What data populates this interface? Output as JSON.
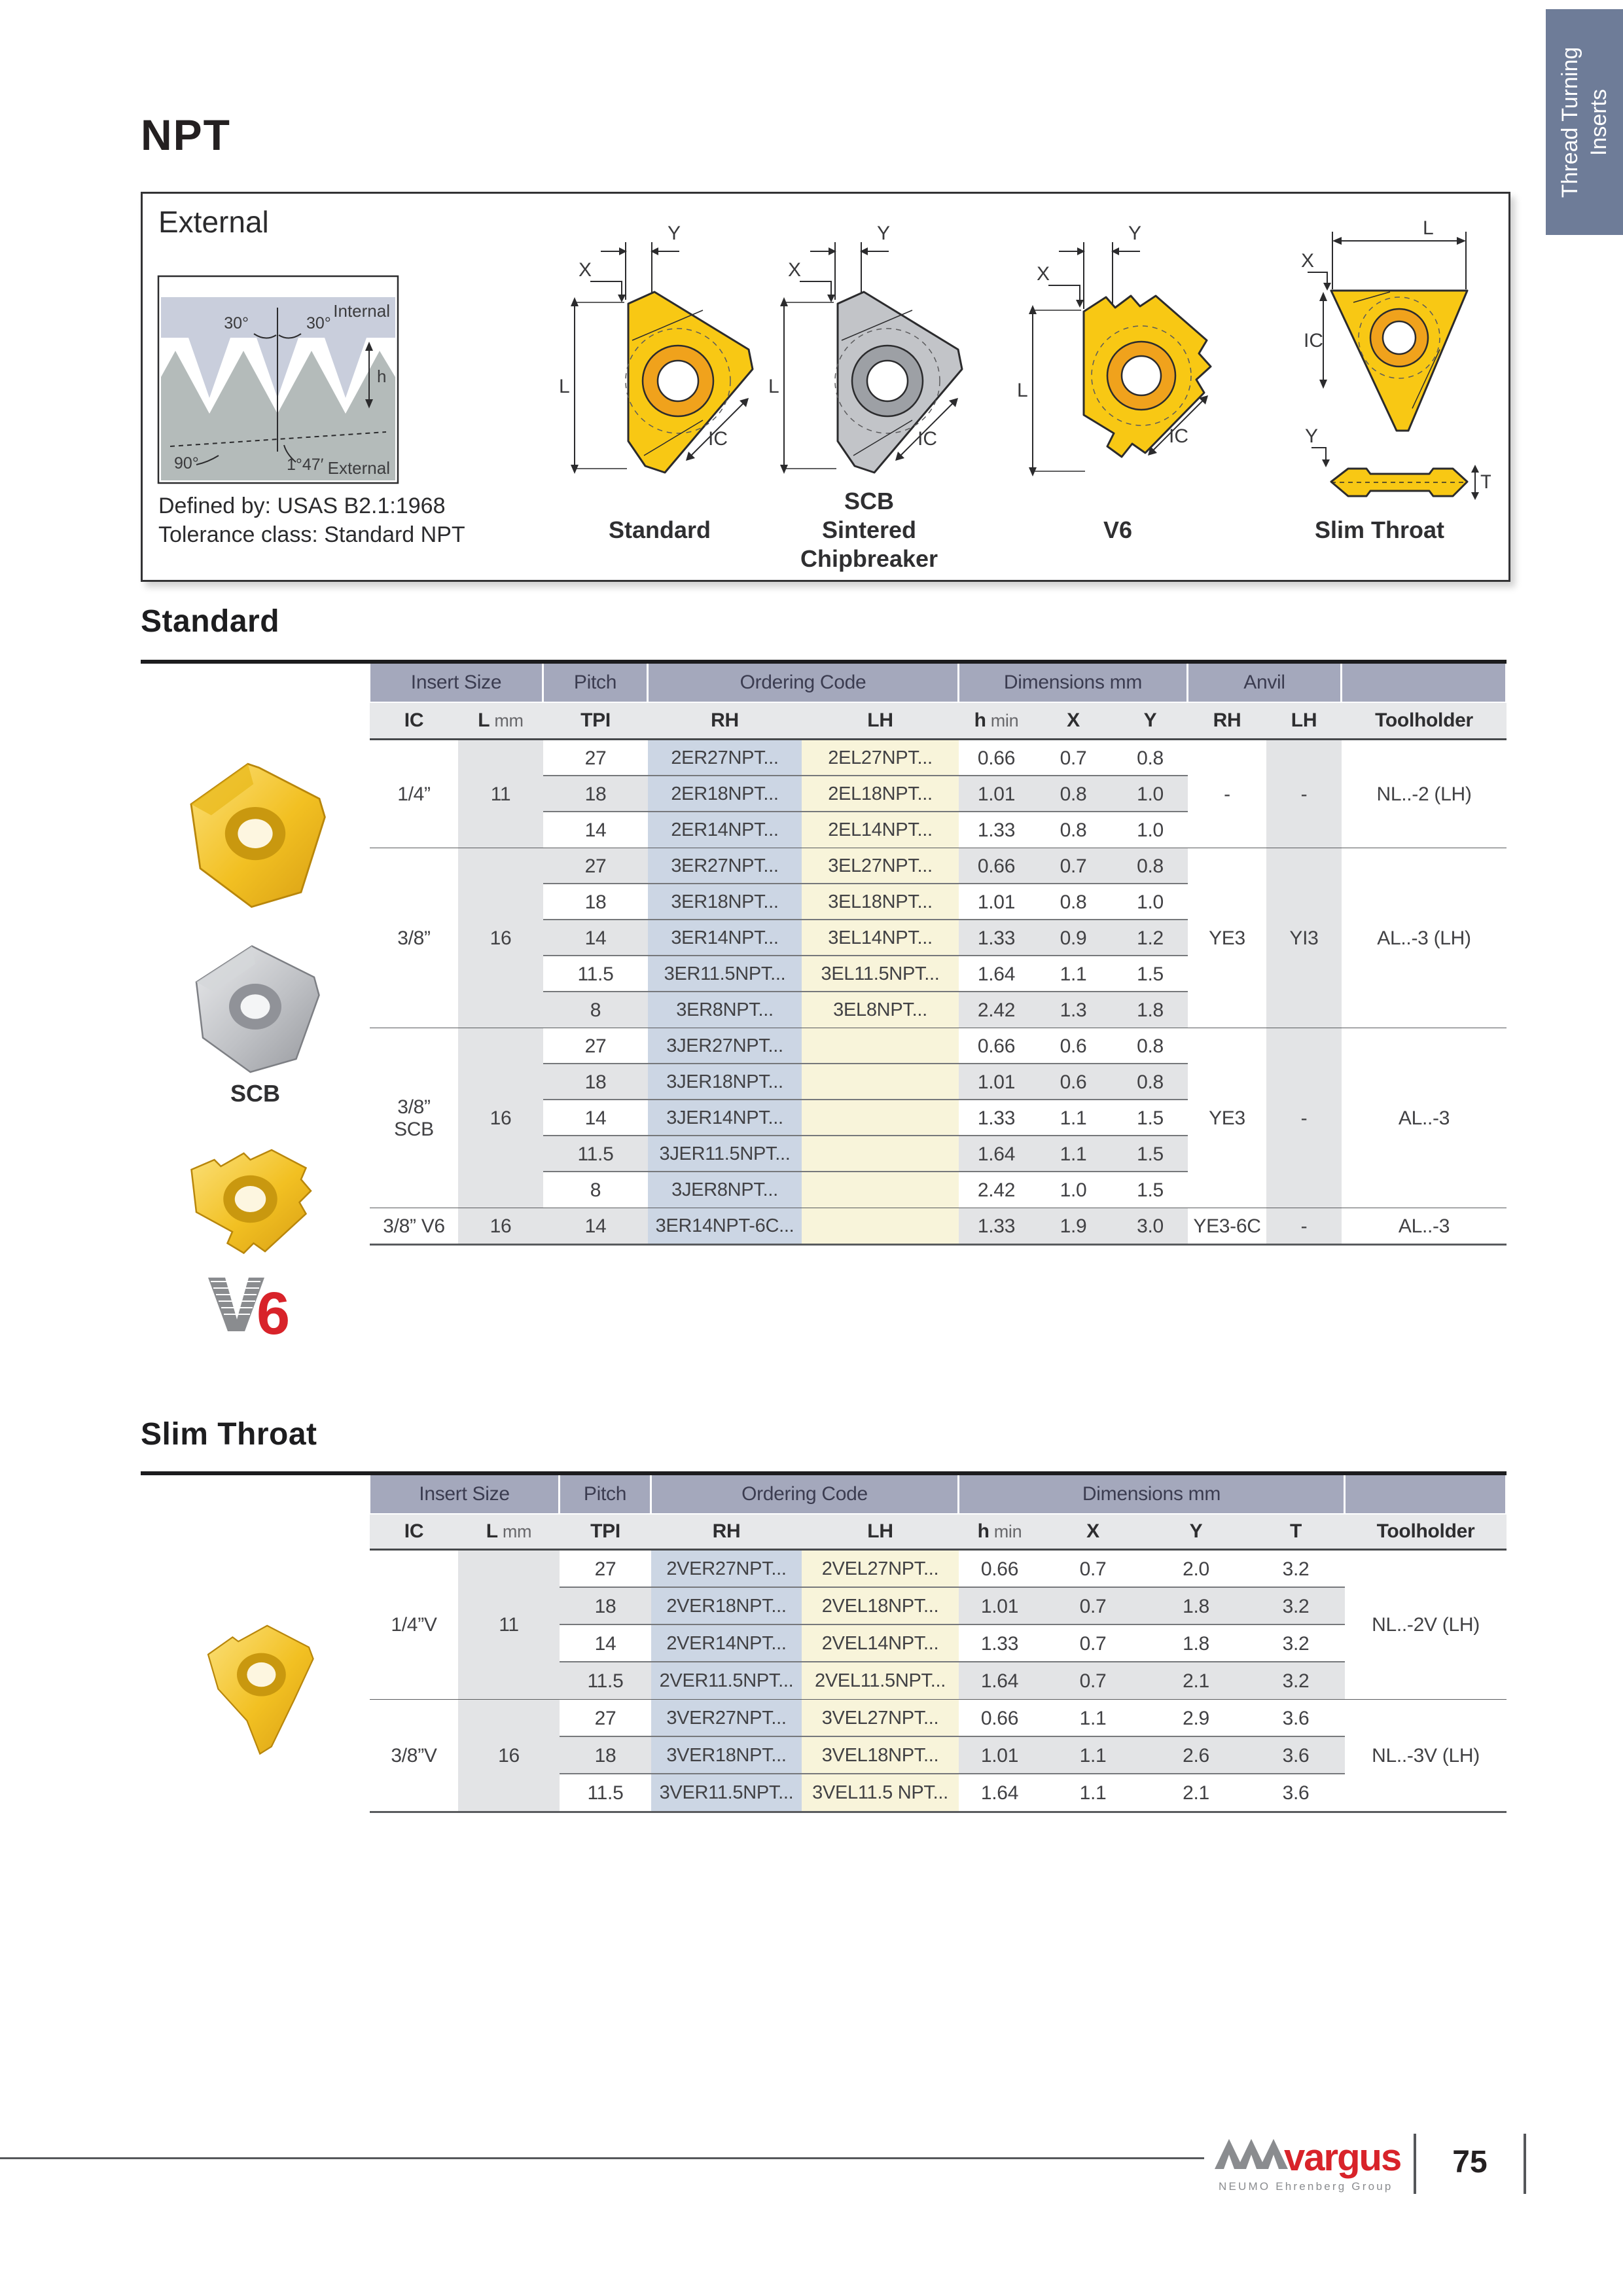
{
  "page": {
    "title": "NPT",
    "side_tab": {
      "line1": "Thread Turning",
      "line2": "Inserts"
    }
  },
  "external_box": {
    "title": "External",
    "defined_by": "Defined by: USAS B2.1:1968",
    "tolerance": "Tolerance class: Standard NPT",
    "profile_labels": {
      "angle_left": "30°",
      "angle_right": "30°",
      "internal": "Internal",
      "height": "h",
      "angle_90": "90°",
      "taper": "1°47′",
      "external": "External"
    },
    "dim_labels": {
      "x": "X",
      "y": "Y",
      "l": "L",
      "ic": "IC",
      "t": "T"
    },
    "variants": [
      {
        "caption": "Standard"
      },
      {
        "caption": "SCB Sintered Chipbreaker",
        "lines": [
          "SCB",
          "Sintered",
          "Chipbreaker"
        ]
      },
      {
        "caption": "V6"
      },
      {
        "caption": "Slim Throat"
      }
    ]
  },
  "standard_table": {
    "heading": "Standard",
    "photo_caption_scb": "SCB",
    "v6_logo": {
      "v": "V",
      "six": "6"
    },
    "col_groups": [
      "Insert Size",
      "Pitch",
      "Ordering Code",
      "Dimensions mm",
      "Anvil"
    ],
    "col_headers": {
      "ic": "IC",
      "l": "L",
      "l_unit": "mm",
      "tpi": "TPI",
      "rh": "RH",
      "lh": "LH",
      "h": "h",
      "h_unit": "min",
      "x": "X",
      "y": "Y",
      "anvil_rh": "RH",
      "anvil_lh": "LH",
      "toolholder": "Toolholder"
    },
    "sections": [
      {
        "ic": "1/4”",
        "l": "11",
        "anvil_rh": "-",
        "anvil_lh": "-",
        "toolholder": "NL..-2 (LH)",
        "rows": [
          {
            "tpi": "27",
            "rh": "2ER27NPT...",
            "lh": "2EL27NPT...",
            "h": "0.66",
            "x": "0.7",
            "y": "0.8"
          },
          {
            "tpi": "18",
            "rh": "2ER18NPT...",
            "lh": "2EL18NPT...",
            "h": "1.01",
            "x": "0.8",
            "y": "1.0"
          },
          {
            "tpi": "14",
            "rh": "2ER14NPT...",
            "lh": "2EL14NPT...",
            "h": "1.33",
            "x": "0.8",
            "y": "1.0"
          }
        ]
      },
      {
        "ic": "3/8”",
        "l": "16",
        "anvil_rh": "YE3",
        "anvil_lh": "YI3",
        "toolholder": "AL..-3 (LH)",
        "rows": [
          {
            "tpi": "27",
            "rh": "3ER27NPT...",
            "lh": "3EL27NPT...",
            "h": "0.66",
            "x": "0.7",
            "y": "0.8"
          },
          {
            "tpi": "18",
            "rh": "3ER18NPT...",
            "lh": "3EL18NPT...",
            "h": "1.01",
            "x": "0.8",
            "y": "1.0"
          },
          {
            "tpi": "14",
            "rh": "3ER14NPT...",
            "lh": "3EL14NPT...",
            "h": "1.33",
            "x": "0.9",
            "y": "1.2"
          },
          {
            "tpi": "11.5",
            "rh": "3ER11.5NPT...",
            "lh": "3EL11.5NPT...",
            "h": "1.64",
            "x": "1.1",
            "y": "1.5"
          },
          {
            "tpi": "8",
            "rh": "3ER8NPT...",
            "lh": "3EL8NPT...",
            "h": "2.42",
            "x": "1.3",
            "y": "1.8"
          }
        ]
      },
      {
        "ic": "3/8”\nSCB",
        "l": "16",
        "anvil_rh": "YE3",
        "anvil_lh": "-",
        "toolholder": "AL..-3",
        "rows": [
          {
            "tpi": "27",
            "rh": "3JER27NPT...",
            "lh": "",
            "h": "0.66",
            "x": "0.6",
            "y": "0.8"
          },
          {
            "tpi": "18",
            "rh": "3JER18NPT...",
            "lh": "",
            "h": "1.01",
            "x": "0.6",
            "y": "0.8"
          },
          {
            "tpi": "14",
            "rh": "3JER14NPT...",
            "lh": "",
            "h": "1.33",
            "x": "1.1",
            "y": "1.5"
          },
          {
            "tpi": "11.5",
            "rh": "3JER11.5NPT...",
            "lh": "",
            "h": "1.64",
            "x": "1.1",
            "y": "1.5"
          },
          {
            "tpi": "8",
            "rh": "3JER8NPT...",
            "lh": "",
            "h": "2.42",
            "x": "1.0",
            "y": "1.5"
          }
        ]
      },
      {
        "ic": "3/8” V6",
        "l": "16",
        "anvil_rh": "YE3-6C",
        "anvil_lh": "-",
        "toolholder": "AL..-3",
        "rows": [
          {
            "tpi": "14",
            "rh": "3ER14NPT-6C...",
            "lh": "",
            "h": "1.33",
            "x": "1.9",
            "y": "3.0"
          }
        ]
      }
    ]
  },
  "slim_table": {
    "heading": "Slim Throat",
    "col_groups": [
      "Insert Size",
      "Pitch",
      "Ordering Code",
      "Dimensions mm"
    ],
    "col_headers": {
      "ic": "IC",
      "l": "L",
      "l_unit": "mm",
      "tpi": "TPI",
      "rh": "RH",
      "lh": "LH",
      "h": "h",
      "h_unit": "min",
      "x": "X",
      "y": "Y",
      "t": "T",
      "toolholder": "Toolholder"
    },
    "sections": [
      {
        "ic": "1/4”V",
        "l": "11",
        "toolholder": "NL..-2V (LH)",
        "rows": [
          {
            "tpi": "27",
            "rh": "2VER27NPT...",
            "lh": "2VEL27NPT...",
            "h": "0.66",
            "x": "0.7",
            "y": "2.0",
            "t": "3.2"
          },
          {
            "tpi": "18",
            "rh": "2VER18NPT...",
            "lh": "2VEL18NPT...",
            "h": "1.01",
            "x": "0.7",
            "y": "1.8",
            "t": "3.2"
          },
          {
            "tpi": "14",
            "rh": "2VER14NPT...",
            "lh": "2VEL14NPT...",
            "h": "1.33",
            "x": "0.7",
            "y": "1.8",
            "t": "3.2"
          },
          {
            "tpi": "11.5",
            "rh": "2VER11.5NPT...",
            "lh": "2VEL11.5NPT...",
            "h": "1.64",
            "x": "0.7",
            "y": "2.1",
            "t": "3.2"
          }
        ]
      },
      {
        "ic": "3/8”V",
        "l": "16",
        "toolholder": "NL..-3V (LH)",
        "rows": [
          {
            "tpi": "27",
            "rh": "3VER27NPT...",
            "lh": "3VEL27NPT...",
            "h": "0.66",
            "x": "1.1",
            "y": "2.9",
            "t": "3.6"
          },
          {
            "tpi": "18",
            "rh": "3VER18NPT...",
            "lh": "3VEL18NPT...",
            "h": "1.01",
            "x": "1.1",
            "y": "2.6",
            "t": "3.6"
          },
          {
            "tpi": "11.5",
            "rh": "3VER11.5NPT...",
            "lh": "3VEL11.5 NPT...",
            "h": "1.64",
            "x": "1.1",
            "y": "2.1",
            "t": "3.6"
          }
        ]
      }
    ]
  },
  "footer": {
    "brand": "vargus",
    "brand_sub": "NEUMO Ehrenberg Group",
    "page_number": "75"
  }
}
